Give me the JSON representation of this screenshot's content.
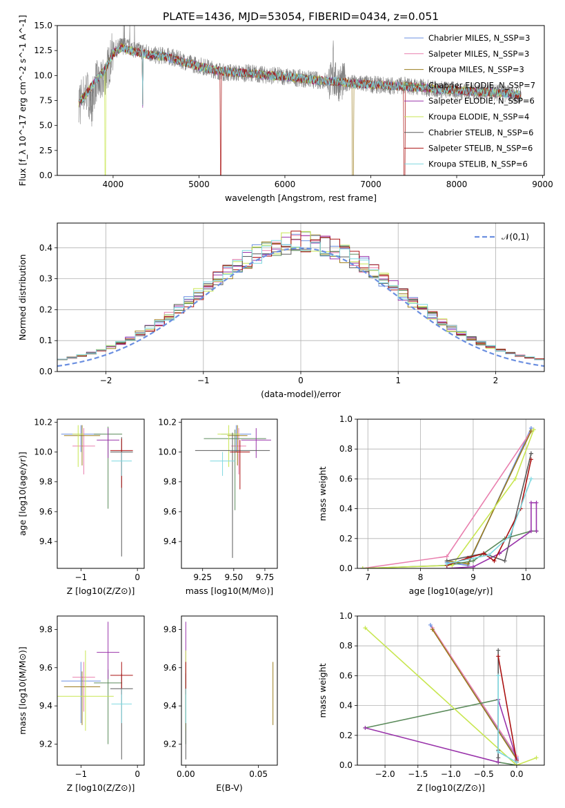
{
  "figure": {
    "title": "PLATE=1436, MJD=53054, FIBERID=0434, z=0.051",
    "series_colors": [
      "#6b8fe0",
      "#e97fae",
      "#9a7b1b",
      "#5a8a5a",
      "#9933aa",
      "#c8e650",
      "#5a5a5a",
      "#aa1111",
      "#7fd8e0"
    ]
  },
  "chart_data": [
    {
      "id": "spectrum",
      "type": "line",
      "title": "PLATE=1436, MJD=53054, FIBERID=0434, z=0.051",
      "xlabel": "wavelength [Angstrom, rest frame]",
      "ylabel": "Flux [f_λ 10^-17 erg cm^-2 s^-1 A^-1]",
      "xlim": [
        3350,
        9020
      ],
      "ylim": [
        0,
        15
      ],
      "xticks": [
        4000,
        5000,
        6000,
        7000,
        8000,
        9000
      ],
      "yticks": [
        0.0,
        2.5,
        5.0,
        7.5,
        10.0,
        12.5,
        15.0
      ],
      "legend_position": "upper-right",
      "legend": [
        {
          "label": "Chabrier MILES, N_SSP=3",
          "color": "#6b8fe0"
        },
        {
          "label": "Salpeter MILES, N_SSP=3",
          "color": "#e97fae"
        },
        {
          "label": "Kroupa MILES, N_SSP=3",
          "color": "#9a7b1b"
        },
        {
          "label": "Chabrier ELODIE, N_SSP=7",
          "color": "#5a8a5a"
        },
        {
          "label": "Salpeter ELODIE, N_SSP=6",
          "color": "#9933aa"
        },
        {
          "label": "Kroupa ELODIE, N_SSP=4",
          "color": "#c8e650"
        },
        {
          "label": "Chabrier STELIB, N_SSP=6",
          "color": "#5a5a5a"
        },
        {
          "label": "Salpeter STELIB, N_SSP=6",
          "color": "#aa1111"
        },
        {
          "label": "Kroupa STELIB, N_SSP=6",
          "color": "#7fd8e0"
        }
      ],
      "data_trace": {
        "x": [
          3600,
          3650,
          3700,
          3750,
          3800,
          3850,
          3900,
          3950,
          4000,
          4100,
          4200,
          4300,
          4400,
          4500,
          4600,
          4700,
          4800,
          4900,
          5000,
          5100,
          5200,
          5300,
          5400,
          5500,
          5600,
          5700,
          5800,
          5900,
          6000,
          6100,
          6200,
          6300,
          6400,
          6500,
          6600,
          6700,
          6800,
          6900,
          7000,
          7200,
          7400,
          7600,
          7800,
          8000,
          8200,
          8400,
          8600,
          8750
        ],
        "y": [
          7.5,
          8.0,
          8.5,
          7.0,
          9.5,
          9.0,
          10.0,
          11.0,
          12.5,
          13.0,
          12.8,
          12.5,
          12.3,
          12.0,
          12.0,
          11.8,
          11.5,
          11.2,
          11.0,
          10.8,
          10.5,
          10.3,
          10.3,
          10.2,
          10.3,
          10.1,
          10.0,
          10.0,
          9.9,
          9.8,
          9.7,
          9.6,
          9.5,
          9.5,
          9.4,
          9.3,
          9.2,
          9.2,
          9.1,
          9.0,
          9.0,
          8.8,
          8.6,
          8.5,
          8.4,
          8.3,
          8.2,
          8.0
        ]
      },
      "model_trace": {
        "x": [
          3600,
          3700,
          3800,
          3900,
          4000,
          4100,
          4200,
          4300,
          4400,
          4600,
          4800,
          5000,
          5200,
          5400,
          5600,
          5800,
          6000,
          6200,
          6400,
          6600,
          6800,
          7000,
          7200,
          7400,
          7600,
          7800,
          8000,
          8200,
          8400,
          8600,
          8750
        ],
        "y": [
          7.2,
          8.3,
          9.5,
          10.5,
          12.2,
          12.8,
          12.5,
          12.3,
          12.1,
          11.9,
          11.4,
          10.9,
          10.5,
          10.3,
          10.2,
          10.0,
          9.9,
          9.7,
          9.5,
          9.4,
          9.2,
          9.1,
          9.0,
          8.9,
          8.8,
          8.6,
          8.5,
          8.4,
          8.3,
          8.2,
          8.0
        ]
      }
    },
    {
      "id": "residuals",
      "type": "line",
      "xlabel": "(data-model)/error",
      "ylabel": "Normed distribution",
      "xlim": [
        -2.5,
        2.5
      ],
      "ylim": [
        0,
        0.48
      ],
      "xticks": [
        -2,
        -1,
        0,
        1,
        2
      ],
      "yticks": [
        0.0,
        0.1,
        0.2,
        0.3,
        0.4
      ],
      "grid": true,
      "legend_position": "upper-right",
      "legend": [
        {
          "label": "𝒩(0,1)",
          "color": "#6b8fe0"
        }
      ]
    },
    {
      "id": "age-vs-Z",
      "type": "scatter",
      "xlabel": "Z [log10(Z/Z⊙)]",
      "ylabel": "age [log10(age/yr)]",
      "xlim": [
        -1.42,
        0.12
      ],
      "ylim": [
        9.22,
        10.22
      ],
      "xticks": [
        -1,
        0
      ],
      "yticks": [
        9.4,
        9.6,
        9.8,
        10.0,
        10.2
      ],
      "points": [
        {
          "x": -1.0,
          "y": 10.12,
          "xerr": 0.35,
          "yerr": [
            0.12,
            0.06
          ],
          "c": "#6b8fe0"
        },
        {
          "x": -0.95,
          "y": 10.04,
          "xerr": 0.2,
          "yerr": [
            0.19,
            0.12
          ],
          "c": "#e97fae"
        },
        {
          "x": -0.98,
          "y": 10.11,
          "xerr": 0.32,
          "yerr": [
            0.2,
            0.07
          ],
          "c": "#9a7b1b"
        },
        {
          "x": -0.52,
          "y": 10.12,
          "xerr": 0.25,
          "yerr": [
            0.5,
            0.05
          ],
          "c": "#5a8a5a"
        },
        {
          "x": -0.52,
          "y": 10.08,
          "xerr": 0.2,
          "yerr": [
            0.12,
            0.08
          ],
          "c": "#9933aa"
        },
        {
          "x": -1.05,
          "y": 10.12,
          "xerr": 0.1,
          "yerr": [
            0.22,
            0.06
          ],
          "c": "#c8e650"
        },
        {
          "x": -0.28,
          "y": 10.0,
          "xerr": 0.2,
          "yerr": [
            0.7,
            0.1
          ],
          "c": "#5a5a5a"
        },
        {
          "x": -0.28,
          "y": 10.01,
          "xerr": 0.2,
          "yerr": [
            0.25,
            0.08
          ],
          "c": "#aa1111"
        },
        {
          "x": -0.28,
          "y": 9.94,
          "xerr": 0.18,
          "yerr": [
            0.1,
            0.06
          ],
          "c": "#7fd8e0"
        }
      ]
    },
    {
      "id": "age-vs-mass",
      "type": "scatter",
      "xlabel": "mass [log10(M/M⊙)]",
      "xlim": [
        9.08,
        9.85
      ],
      "ylim": [
        9.22,
        10.22
      ],
      "xticks": [
        9.25,
        9.5,
        9.75
      ],
      "yticks": [
        9.4,
        9.6,
        9.8,
        10.0,
        10.2
      ],
      "points": [
        {
          "x": 9.52,
          "y": 10.12,
          "xerr": 0.12,
          "yerr": [
            0.12,
            0.06
          ],
          "c": "#6b8fe0"
        },
        {
          "x": 9.54,
          "y": 10.04,
          "xerr": 0.06,
          "yerr": [
            0.19,
            0.12
          ],
          "c": "#e97fae"
        },
        {
          "x": 9.53,
          "y": 10.11,
          "xerr": 0.08,
          "yerr": [
            0.2,
            0.07
          ],
          "c": "#9a7b1b"
        },
        {
          "x": 9.51,
          "y": 10.09,
          "xerr": 0.25,
          "yerr": [
            0.48,
            0.06
          ],
          "c": "#5a8a5a"
        },
        {
          "x": 9.68,
          "y": 10.08,
          "xerr": 0.12,
          "yerr": [
            0.12,
            0.08
          ],
          "c": "#9933aa"
        },
        {
          "x": 9.46,
          "y": 10.12,
          "xerr": 0.09,
          "yerr": [
            0.22,
            0.06
          ],
          "c": "#c8e650"
        },
        {
          "x": 9.49,
          "y": 10.01,
          "xerr": 0.3,
          "yerr": [
            0.72,
            0.12
          ],
          "c": "#5a5a5a"
        },
        {
          "x": 9.55,
          "y": 10.0,
          "xerr": 0.08,
          "yerr": [
            0.25,
            0.08
          ],
          "c": "#aa1111"
        },
        {
          "x": 9.41,
          "y": 9.94,
          "xerr": 0.1,
          "yerr": [
            0.1,
            0.06
          ],
          "c": "#7fd8e0"
        }
      ]
    },
    {
      "id": "massweight-vs-age",
      "type": "line",
      "xlabel": "age [log10(age/yr)]",
      "ylabel": "mass weight",
      "xlim": [
        6.8,
        10.35
      ],
      "ylim": [
        0,
        1.0
      ],
      "xticks": [
        7,
        8,
        9,
        10
      ],
      "yticks": [
        0.0,
        0.2,
        0.4,
        0.6,
        0.8,
        1.0
      ],
      "grid": true,
      "series": [
        {
          "c": "#6b8fe0",
          "x": [
            8.5,
            8.9,
            10.1
          ],
          "y": [
            0.04,
            0.02,
            0.94
          ]
        },
        {
          "c": "#e97fae",
          "x": [
            6.9,
            8.5,
            10.1
          ],
          "y": [
            0.0,
            0.08,
            0.92
          ]
        },
        {
          "c": "#9a7b1b",
          "x": [
            8.5,
            8.9,
            10.1
          ],
          "y": [
            0.05,
            0.03,
            0.92
          ]
        },
        {
          "c": "#5a8a5a",
          "x": [
            6.9,
            8.5,
            9.0,
            9.6,
            10.1,
            10.2
          ],
          "y": [
            0.0,
            0.02,
            0.05,
            0.2,
            0.25,
            0.25
          ]
        },
        {
          "c": "#9933aa",
          "x": [
            8.5,
            9.0,
            9.5,
            10.1,
            10.1,
            10.2,
            10.2
          ],
          "y": [
            0.0,
            0.01,
            0.1,
            0.25,
            0.44,
            0.44,
            0.25
          ]
        },
        {
          "c": "#c8e650",
          "x": [
            6.9,
            8.6,
            9.8,
            10.15
          ],
          "y": [
            0.0,
            0.02,
            0.6,
            0.93
          ]
        },
        {
          "c": "#5a5a5a",
          "x": [
            8.5,
            9.2,
            9.6,
            10.1,
            10.1
          ],
          "y": [
            0.05,
            0.1,
            0.05,
            0.77,
            0.77
          ]
        },
        {
          "c": "#aa1111",
          "x": [
            8.5,
            8.9,
            9.2,
            9.4,
            9.9,
            10.1
          ],
          "y": [
            0.02,
            0.07,
            0.1,
            0.05,
            0.4,
            0.73
          ]
        },
        {
          "c": "#7fd8e0",
          "x": [
            8.5,
            9.3,
            9.7,
            10.1
          ],
          "y": [
            0.03,
            0.09,
            0.22,
            0.6
          ]
        }
      ]
    },
    {
      "id": "mass-vs-Z",
      "type": "scatter",
      "xlabel": "Z [log10(Z/Z⊙)]",
      "ylabel": "mass [log10(M/M⊙)]",
      "xlim": [
        -1.42,
        0.12
      ],
      "ylim": [
        9.09,
        9.87
      ],
      "xticks": [
        -1,
        0
      ],
      "yticks": [
        9.2,
        9.4,
        9.6,
        9.8
      ],
      "points": [
        {
          "x": -1.0,
          "y": 9.53,
          "xerr": 0.35,
          "yerr": [
            0.22,
            0.1
          ],
          "c": "#6b8fe0"
        },
        {
          "x": -0.95,
          "y": 9.55,
          "xerr": 0.2,
          "yerr": [
            0.18,
            0.08
          ],
          "c": "#e97fae"
        },
        {
          "x": -0.98,
          "y": 9.5,
          "xerr": 0.32,
          "yerr": [
            0.2,
            0.08
          ],
          "c": "#9a7b1b"
        },
        {
          "x": -0.52,
          "y": 9.52,
          "xerr": 0.25,
          "yerr": [
            0.32,
            0.07
          ],
          "c": "#5a8a5a"
        },
        {
          "x": -0.52,
          "y": 9.68,
          "xerr": 0.2,
          "yerr": [
            0.14,
            0.16
          ],
          "c": "#9933aa"
        },
        {
          "x": -0.92,
          "y": 9.45,
          "xerr": 0.5,
          "yerr": [
            0.18,
            0.24
          ],
          "c": "#c8e650"
        },
        {
          "x": -0.28,
          "y": 9.49,
          "xerr": 0.2,
          "yerr": [
            0.37,
            0.08
          ],
          "c": "#5a5a5a"
        },
        {
          "x": -0.28,
          "y": 9.56,
          "xerr": 0.2,
          "yerr": [
            0.1,
            0.07
          ],
          "c": "#aa1111"
        },
        {
          "x": -0.28,
          "y": 9.41,
          "xerr": 0.18,
          "yerr": [
            0.1,
            0.08
          ],
          "c": "#7fd8e0"
        }
      ]
    },
    {
      "id": "mass-vs-EBV",
      "type": "scatter",
      "xlabel": "E(B-V)",
      "xlim": [
        -0.003,
        0.063
      ],
      "ylim": [
        9.09,
        9.87
      ],
      "xticks": [
        0.0,
        0.05
      ],
      "xticklabels": [
        "0.00",
        "0.05"
      ],
      "yticks": [
        9.2,
        9.4,
        9.6,
        9.8
      ],
      "points": [
        {
          "x": 0.0,
          "y": 9.53,
          "yerr": [
            0.22,
            0.1
          ],
          "c": "#6b8fe0"
        },
        {
          "x": 0.0,
          "y": 9.55,
          "yerr": [
            0.18,
            0.08
          ],
          "c": "#e97fae"
        },
        {
          "x": 0.06,
          "y": 9.5,
          "yerr": [
            0.2,
            0.13
          ],
          "c": "#9a7b1b"
        },
        {
          "x": 0.0,
          "y": 9.52,
          "yerr": [
            0.32,
            0.07
          ],
          "c": "#5a8a5a"
        },
        {
          "x": 0.0,
          "y": 9.68,
          "yerr": [
            0.14,
            0.16
          ],
          "c": "#9933aa"
        },
        {
          "x": 0.0,
          "y": 9.45,
          "yerr": [
            0.18,
            0.24
          ],
          "c": "#c8e650"
        },
        {
          "x": 0.0,
          "y": 9.49,
          "yerr": [
            0.37,
            0.08
          ],
          "c": "#5a5a5a"
        },
        {
          "x": 0.0,
          "y": 9.56,
          "yerr": [
            0.1,
            0.07
          ],
          "c": "#aa1111"
        },
        {
          "x": 0.0,
          "y": 9.41,
          "yerr": [
            0.1,
            0.08
          ],
          "c": "#7fd8e0"
        }
      ]
    },
    {
      "id": "massweight-vs-Z",
      "type": "line",
      "xlabel": "Z [log10(Z/Z⊙)]",
      "ylabel": "mass weight",
      "xlim": [
        -2.42,
        0.42
      ],
      "ylim": [
        0,
        1.0
      ],
      "xticks": [
        -2.0,
        -1.5,
        -1.0,
        -0.5,
        0.0
      ],
      "xticklabels": [
        "−2.0",
        "−1.5",
        "−1.0",
        "−0.5",
        "0.0"
      ],
      "yticks": [
        0.0,
        0.2,
        0.4,
        0.6,
        0.8,
        1.0
      ],
      "grid": true,
      "series": [
        {
          "c": "#6b8fe0",
          "x": [
            -1.31,
            0.0
          ],
          "y": [
            0.94,
            0.05
          ]
        },
        {
          "c": "#e97fae",
          "x": [
            -1.28,
            0.0
          ],
          "y": [
            0.92,
            0.06
          ]
        },
        {
          "c": "#9a7b1b",
          "x": [
            -1.28,
            0.0
          ],
          "y": [
            0.91,
            0.04
          ]
        },
        {
          "c": "#5a8a5a",
          "x": [
            -2.3,
            -0.28,
            -0.28,
            0.0
          ],
          "y": [
            0.25,
            0.44,
            0.02,
            0.0
          ]
        },
        {
          "c": "#9933aa",
          "x": [
            -2.3,
            -0.28,
            -0.28,
            0.0
          ],
          "y": [
            0.25,
            0.02,
            0.44,
            0.04
          ]
        },
        {
          "c": "#c8e650",
          "x": [
            -2.3,
            0.0,
            0.3
          ],
          "y": [
            0.92,
            0.0,
            0.05
          ]
        },
        {
          "c": "#5a5a5a",
          "x": [
            -0.28,
            -0.28,
            -0.28
          ],
          "y": [
            0.77,
            0.1,
            0.05
          ]
        },
        {
          "c": "#aa1111",
          "x": [
            -0.28,
            0.0,
            0.0
          ],
          "y": [
            0.73,
            0.03,
            0.02
          ]
        },
        {
          "c": "#7fd8e0",
          "x": [
            -0.28,
            -0.28,
            0.0
          ],
          "y": [
            0.6,
            0.09,
            0.02
          ]
        }
      ]
    }
  ]
}
